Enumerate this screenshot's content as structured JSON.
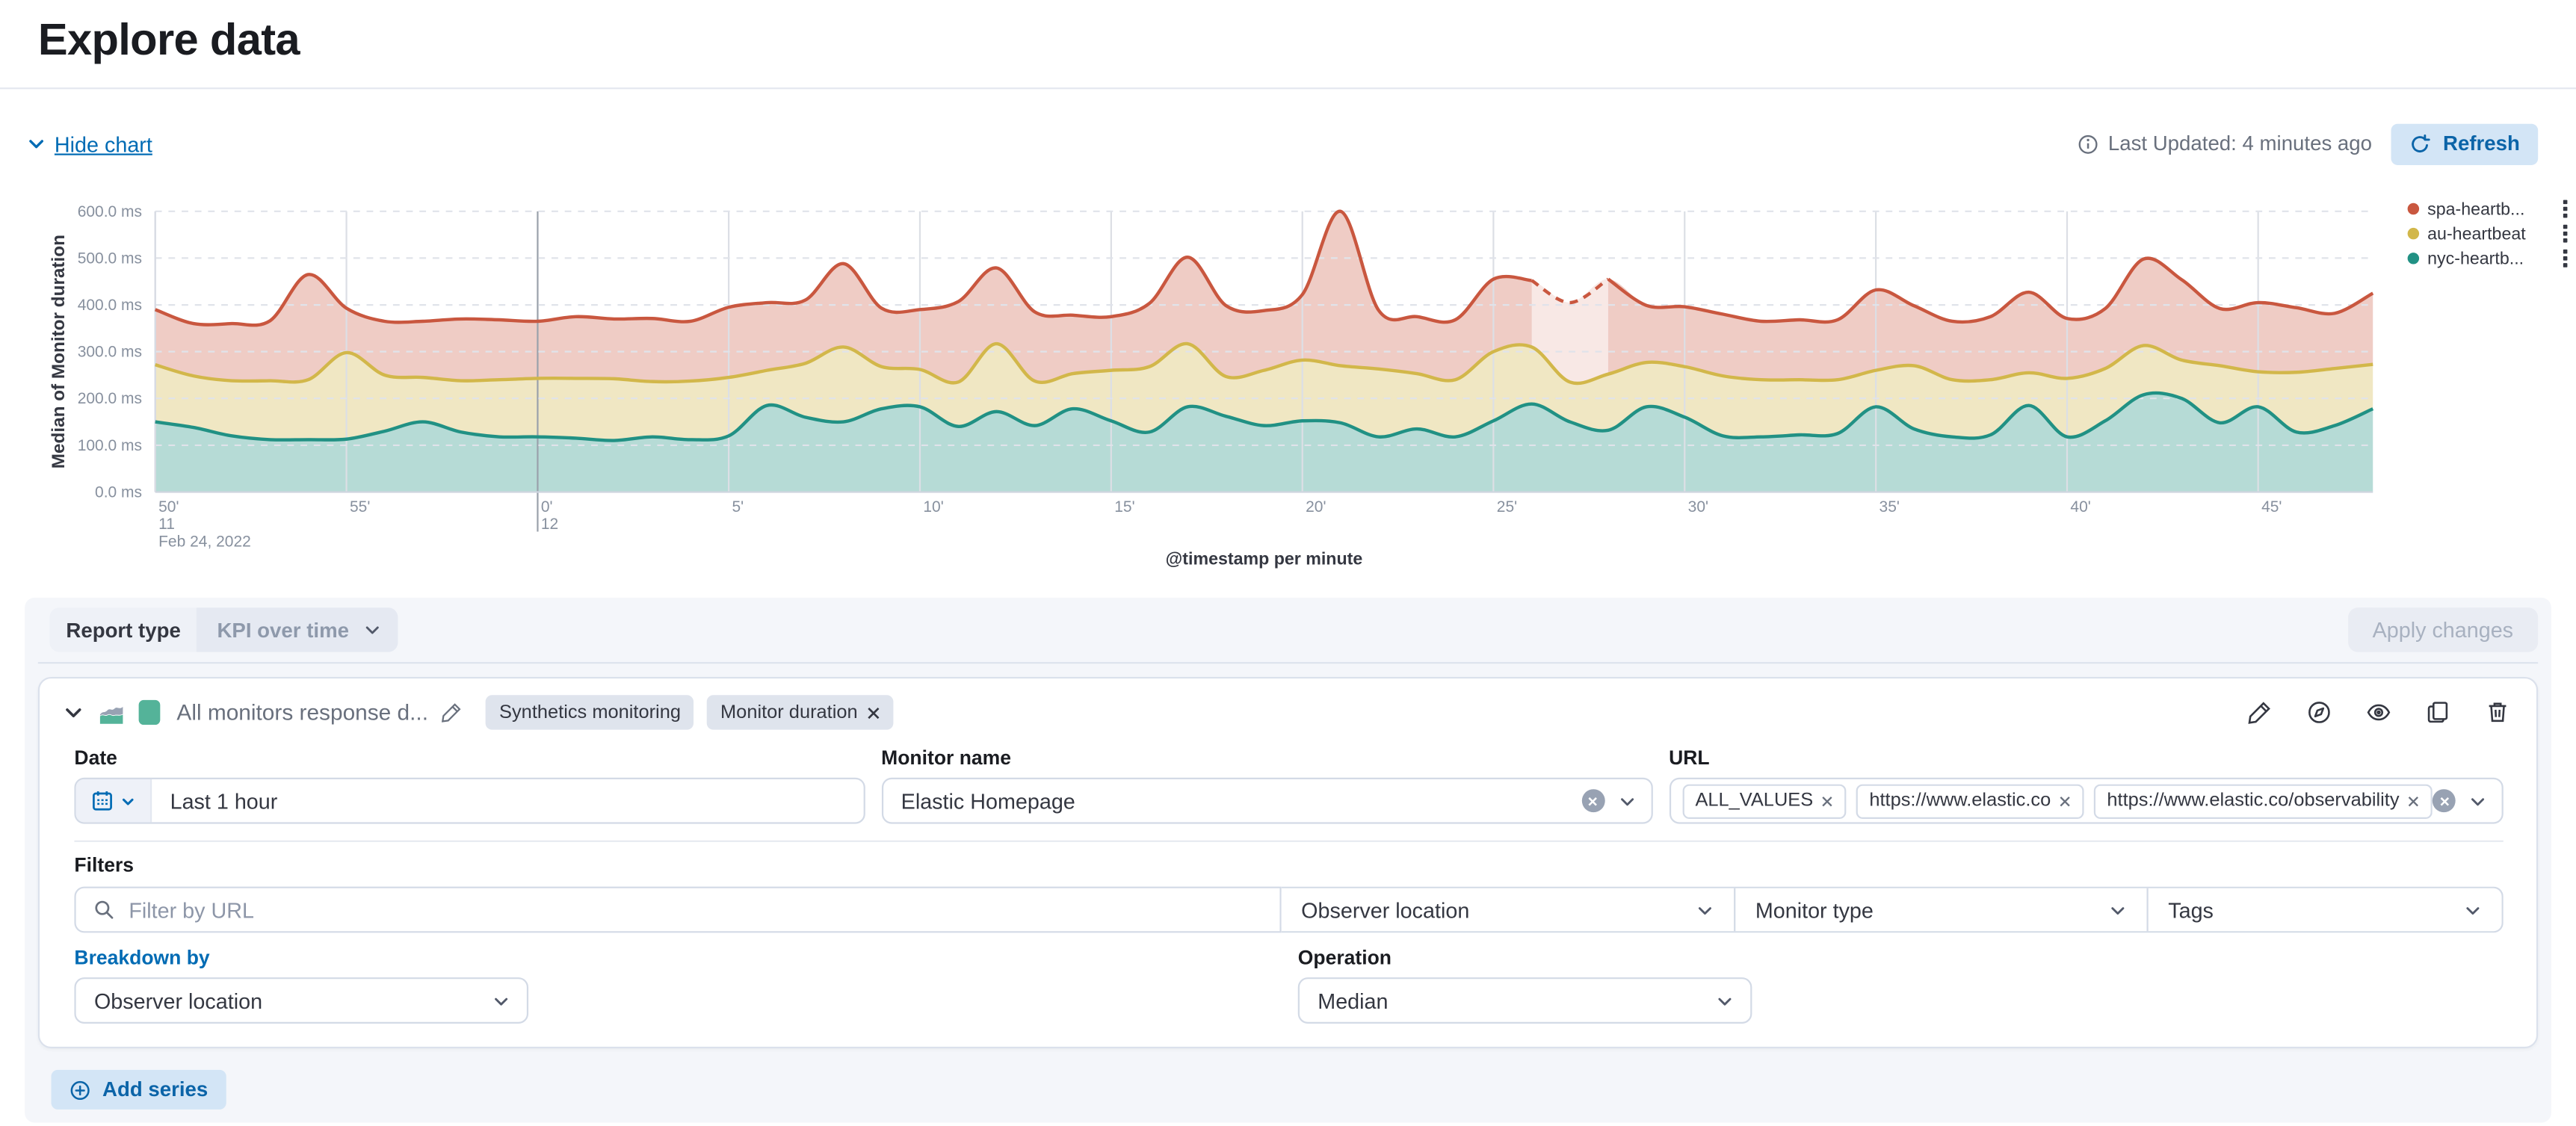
{
  "page": {
    "title": "Explore data"
  },
  "colors": {
    "accent_blue": "#006bb4",
    "button_blue_bg": "#d3e5f6",
    "button_blue_text": "#0b64a8",
    "container_bg": "#f4f6fa",
    "swatch_green": "#54b399"
  },
  "toolbar": {
    "hide_chart_label": "Hide chart",
    "last_updated": "Last Updated: 4 minutes ago",
    "refresh_label": "Refresh"
  },
  "chart_data": {
    "type": "area",
    "stacked": true,
    "title": "",
    "xlabel": "@timestamp per minute",
    "ylabel": "Median of Monitor duration",
    "ylim": [
      0,
      600
    ],
    "grid": {
      "horizontal": "dashed",
      "vertical": "solid"
    },
    "legend_position": "right",
    "y_tick_values": [
      0,
      100,
      200,
      300,
      400,
      500,
      600
    ],
    "y_tick_labels": [
      "0.0 ms",
      "100.0 ms",
      "200.0 ms",
      "300.0 ms",
      "400.0 ms",
      "500.0 ms",
      "600.0 ms"
    ],
    "x_tick_indices": [
      0,
      5,
      10,
      15,
      20,
      25,
      30,
      35,
      40,
      45,
      50,
      55
    ],
    "x_tick_labels": [
      "50'",
      "55'",
      "0'",
      "5'",
      "10'",
      "15'",
      "20'",
      "25'",
      "30'",
      "35'",
      "40'",
      "45'"
    ],
    "x_context_labels": [
      {
        "tick_index": 0,
        "lines": [
          "11",
          "Feb 24, 2022"
        ]
      },
      {
        "tick_index": 2,
        "lines": [
          "12"
        ]
      }
    ],
    "hour_boundary_tick_index": 2,
    "series": [
      {
        "name": "nyc-heartbeat",
        "legend_label": "nyc-heartb...",
        "color": "#219184",
        "fill": "rgba(33,145,132,0.33)",
        "values": [
          150,
          138,
          120,
          112,
          112,
          113,
          130,
          150,
          128,
          118,
          118,
          115,
          110,
          118,
          112,
          120,
          185,
          160,
          150,
          178,
          182,
          140,
          172,
          142,
          178,
          152,
          128,
          182,
          162,
          142,
          152,
          148,
          118,
          135,
          118,
          152,
          188,
          150,
          132,
          182,
          160,
          120,
          118,
          122,
          125,
          182,
          135,
          118,
          122,
          185,
          118,
          152,
          208,
          200,
          148,
          182,
          128,
          142,
          178
        ]
      },
      {
        "name": "au-heartbeat",
        "legend_label": "au-heartbeat",
        "color": "#d2b74a",
        "fill": "rgba(210,183,74,0.33)",
        "values": [
          122,
          110,
          118,
          126,
          128,
          185,
          120,
          95,
          110,
          122,
          125,
          128,
          132,
          118,
          125,
          125,
          75,
          115,
          160,
          90,
          80,
          95,
          145,
          95,
          75,
          108,
          140,
          135,
          85,
          118,
          130,
          122,
          145,
          118,
          122,
          148,
          122,
          85,
          120,
          95,
          108,
          128,
          122,
          118,
          115,
          78,
          135,
          122,
          118,
          70,
          125,
          112,
          105,
          82,
          122,
          75,
          128,
          122,
          95
        ]
      },
      {
        "name": "spa-heartbeat",
        "legend_label": "spa-heartb...",
        "color": "#c9573f",
        "fill": "rgba(201,87,63,0.30)",
        "partial_range": [
          36,
          38
        ],
        "partial_overlay_opacity": 0.55,
        "values": [
          118,
          112,
          122,
          128,
          225,
          95,
          115,
          120,
          132,
          128,
          122,
          132,
          128,
          135,
          128,
          150,
          145,
          135,
          178,
          125,
          128,
          172,
          162,
          148,
          125,
          115,
          135,
          185,
          152,
          128,
          140,
          330,
          125,
          122,
          128,
          155,
          142,
          170,
          203,
          122,
          128,
          132,
          125,
          128,
          128,
          172,
          128,
          125,
          135,
          172,
          128,
          128,
          185,
          172,
          122,
          148,
          138,
          118,
          152
        ]
      }
    ],
    "legend": [
      {
        "label": "spa-heartb...",
        "color": "#c9573f"
      },
      {
        "label": "au-heartbeat",
        "color": "#d2b74a"
      },
      {
        "label": "nyc-heartb...",
        "color": "#219184"
      }
    ]
  },
  "report_type": {
    "label": "Report type",
    "value": "KPI over time"
  },
  "apply_changes_label": "Apply changes",
  "series_panel": {
    "title": "All monitors response d...",
    "badges": [
      {
        "label": "Synthetics monitoring",
        "removable": false
      },
      {
        "label": "Monitor duration",
        "removable": true
      }
    ],
    "date": {
      "label": "Date",
      "value": "Last 1 hour"
    },
    "monitor_name": {
      "label": "Monitor name",
      "value": "Elastic Homepage"
    },
    "url": {
      "label": "URL",
      "tokens": [
        "ALL_VALUES",
        "https://www.elastic.co",
        "https://www.elastic.co/observability"
      ]
    },
    "filters": {
      "label": "Filters",
      "search_placeholder": "Filter by URL",
      "dropdowns": [
        "Observer location",
        "Monitor type",
        "Tags"
      ]
    },
    "breakdown_by": {
      "label": "Breakdown by",
      "value": "Observer location"
    },
    "operation": {
      "label": "Operation",
      "value": "Median"
    }
  },
  "add_series_label": "Add series"
}
